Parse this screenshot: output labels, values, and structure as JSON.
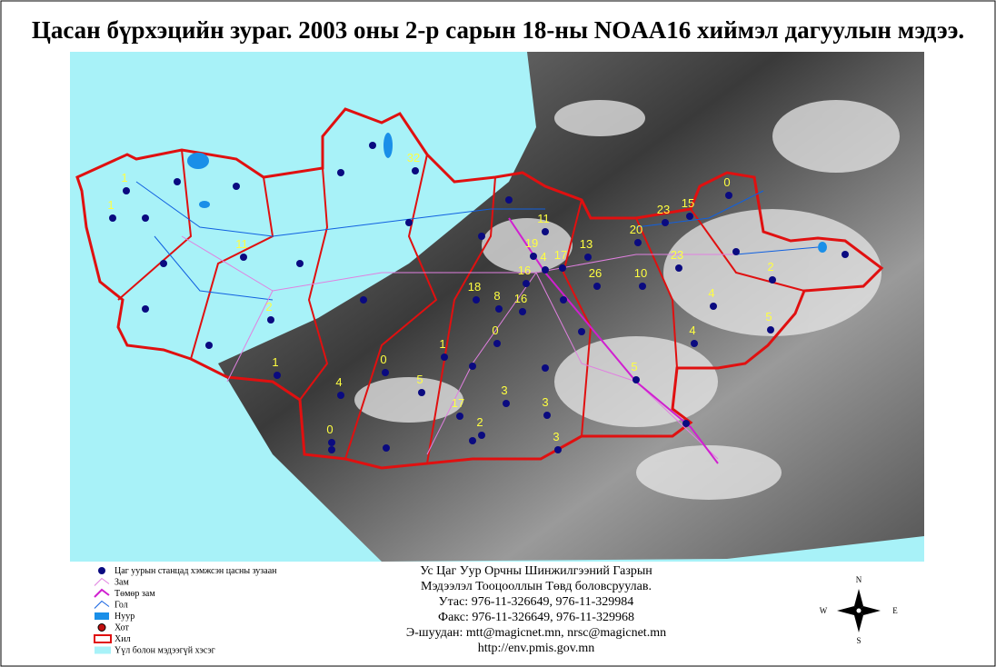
{
  "title": "Цасан бүрхэцийн зураг. 2003 оны 2-р сарын 18-ны NOAA16 хиймэл дагуулын мэдээ.",
  "snow_depth_labels": [
    0,
    32,
    15,
    20,
    23,
    11,
    19,
    13,
    17,
    16,
    4,
    26,
    10,
    23,
    2,
    4,
    5,
    4,
    0,
    1,
    1,
    4,
    0,
    5,
    17,
    3,
    3,
    2,
    3,
    0,
    5,
    18,
    8,
    16,
    11,
    1,
    1,
    2
  ],
  "legend": [
    "Цаг уурын станцад хэмжсэн цасны зузаан",
    "Зам",
    "Төмөр зам",
    "Гол",
    "Нуур",
    "Хот",
    "Хил",
    "Үүл болон мэдээгүй хэсэг"
  ],
  "footer": [
    "Ус Цаг Уур Орчны Шинжилгээний Газрын",
    "Мэдээлэл Тооцооллын Төвд боловсруулав.",
    "Утас: 976-11-326649, 976-11-329984",
    "Факс: 976-11-326649, 976-11-329968",
    "Э-шуудан: mtt@magicnet.mn, nrsc@magicnet.mn",
    "http://env.pmis.gov.mn"
  ],
  "compass": {
    "n": "N",
    "s": "S",
    "e": "E",
    "w": "W"
  }
}
